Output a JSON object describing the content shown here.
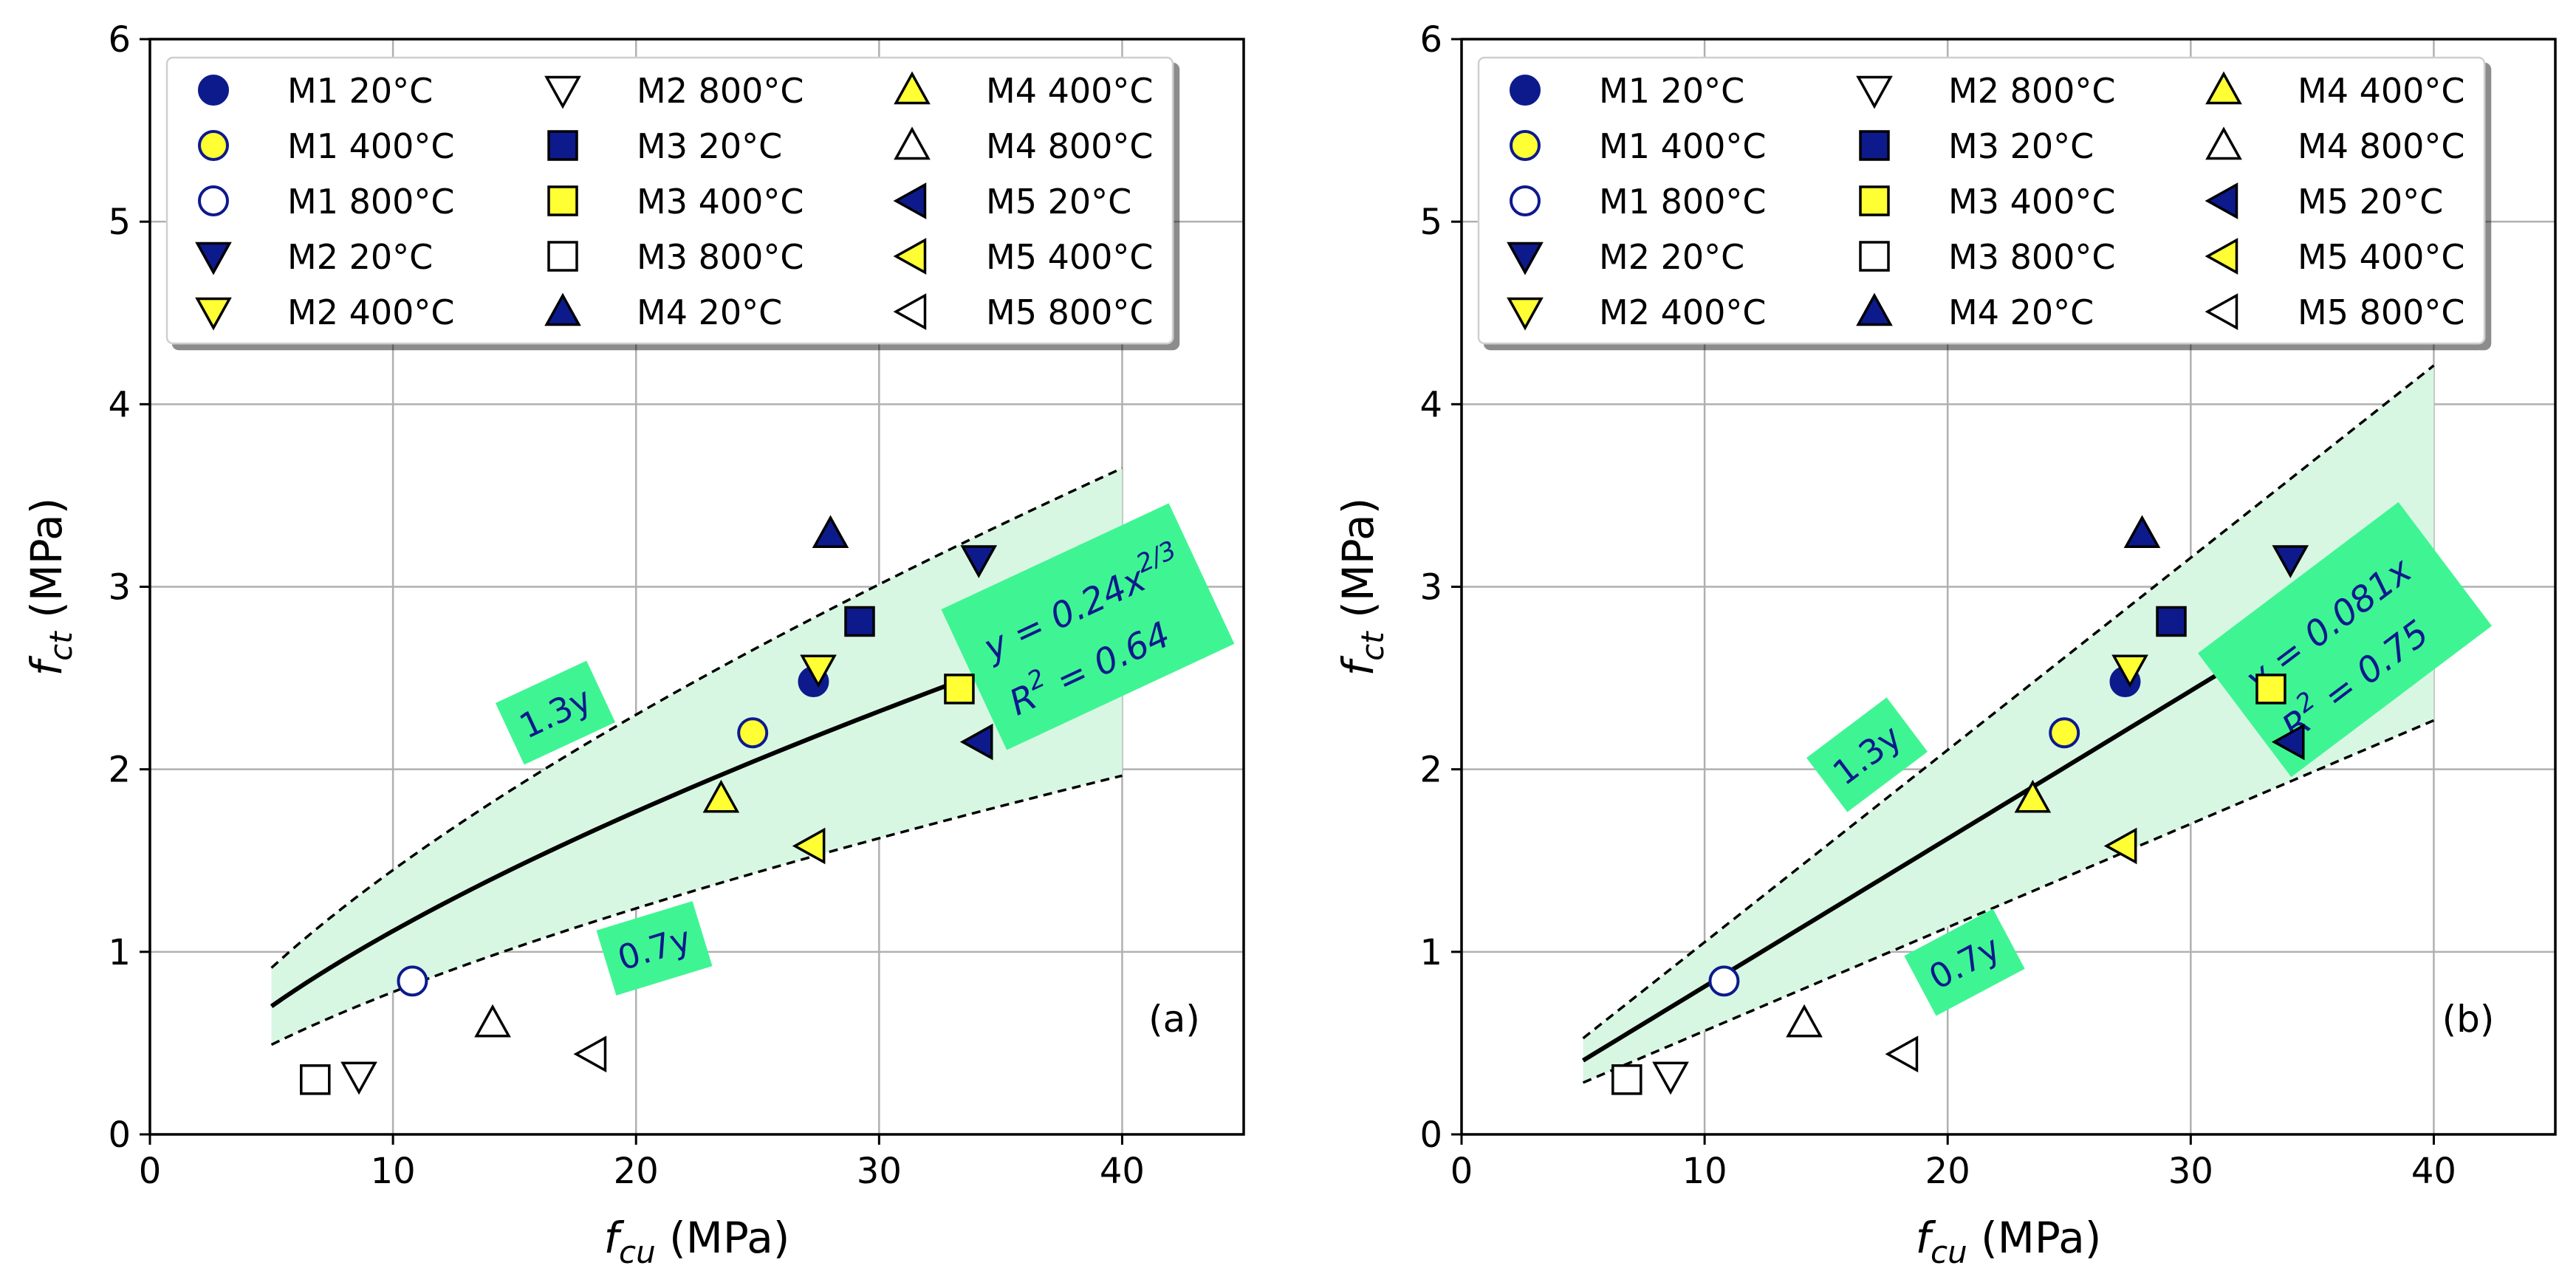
{
  "chart_data": [
    {
      "type": "scatter",
      "panel_label": "(a)",
      "xlabel": {
        "main": "f",
        "sub": "cu",
        "unit": "(MPa)"
      },
      "ylabel": {
        "main": "f",
        "sub": "ct",
        "unit": "(MPa)"
      },
      "xlim": [
        0,
        45
      ],
      "ylim": [
        0,
        6
      ],
      "xticks": [
        0,
        10,
        20,
        30,
        40
      ],
      "yticks": [
        0,
        1,
        2,
        3,
        4,
        5,
        6
      ],
      "grid": true,
      "legend_position": "top",
      "fit": {
        "kind": "power",
        "coef": 0.24,
        "exponent": 0.6667,
        "x_range": [
          5,
          34.5
        ],
        "band_x_range": [
          5,
          40
        ],
        "upper_factor": 1.3,
        "lower_factor": 0.7,
        "equation_main": "y = 0.24x",
        "equation_exp": "2/3",
        "r2_text": "R",
        "r2_exp": "2",
        "r2_value": " = 0.64",
        "upper_label": "1.3y",
        "lower_label": "0.7y"
      },
      "series": [
        {
          "name": "M1 20°C",
          "marker": "circle",
          "fill": "#0d1a8c",
          "x": [
            27.3
          ],
          "y": [
            2.48
          ]
        },
        {
          "name": "M1 400°C",
          "marker": "circle",
          "fill": "#ffff33",
          "x": [
            24.8
          ],
          "y": [
            2.2
          ]
        },
        {
          "name": "M1 800°C",
          "marker": "circle",
          "fill": "#ffffff",
          "x": [
            10.8
          ],
          "y": [
            0.84
          ]
        },
        {
          "name": "M2 20°C",
          "marker": "triangle-down",
          "fill": "#0d1a8c",
          "x": [
            34.1
          ],
          "y": [
            3.15
          ]
        },
        {
          "name": "M2 400°C",
          "marker": "triangle-down",
          "fill": "#ffff33",
          "x": [
            27.5
          ],
          "y": [
            2.55
          ]
        },
        {
          "name": "M2 800°C",
          "marker": "triangle-down",
          "fill": "#ffffff",
          "x": [
            8.6
          ],
          "y": [
            0.32
          ]
        },
        {
          "name": "M3 20°C",
          "marker": "square",
          "fill": "#0d1a8c",
          "x": [
            29.2
          ],
          "y": [
            2.81
          ]
        },
        {
          "name": "M3 400°C",
          "marker": "square",
          "fill": "#ffff33",
          "x": [
            33.3
          ],
          "y": [
            2.44
          ]
        },
        {
          "name": "M3 800°C",
          "marker": "square",
          "fill": "#ffffff",
          "x": [
            6.8
          ],
          "y": [
            0.3
          ]
        },
        {
          "name": "M4 20°C",
          "marker": "triangle-up",
          "fill": "#0d1a8c",
          "x": [
            28.0
          ],
          "y": [
            3.29
          ]
        },
        {
          "name": "M4 400°C",
          "marker": "triangle-up",
          "fill": "#ffff33",
          "x": [
            23.5
          ],
          "y": [
            1.84
          ]
        },
        {
          "name": "M4 800°C",
          "marker": "triangle-up",
          "fill": "#ffffff",
          "x": [
            14.1
          ],
          "y": [
            0.61
          ]
        },
        {
          "name": "M5 20°C",
          "marker": "triangle-left",
          "fill": "#0d1a8c",
          "x": [
            34.1
          ],
          "y": [
            2.15
          ]
        },
        {
          "name": "M5 400°C",
          "marker": "triangle-left",
          "fill": "#ffff33",
          "x": [
            27.2
          ],
          "y": [
            1.58
          ]
        },
        {
          "name": "M5 800°C",
          "marker": "triangle-left",
          "fill": "#ffffff",
          "x": [
            18.2
          ],
          "y": [
            0.44
          ]
        }
      ]
    },
    {
      "type": "scatter",
      "panel_label": "(b)",
      "xlabel": {
        "main": "f",
        "sub": "cu",
        "unit": "(MPa)"
      },
      "ylabel": {
        "main": "f",
        "sub": "ct",
        "unit": "(MPa)"
      },
      "xlim": [
        0,
        45
      ],
      "ylim": [
        0,
        6
      ],
      "xticks": [
        0,
        10,
        20,
        30,
        40
      ],
      "yticks": [
        0,
        1,
        2,
        3,
        4,
        5,
        6
      ],
      "grid": true,
      "legend_position": "top",
      "fit": {
        "kind": "linear",
        "coef": 0.081,
        "exponent": 1,
        "x_range": [
          5,
          33.6
        ],
        "band_x_range": [
          5,
          40
        ],
        "upper_factor": 1.3,
        "lower_factor": 0.7,
        "equation_main": "y = 0.081x",
        "equation_exp": "",
        "r2_text": "R",
        "r2_exp": "2",
        "r2_value": " = 0.75",
        "upper_label": "1.3y",
        "lower_label": "0.7y"
      },
      "series": [
        {
          "name": "M1 20°C",
          "marker": "circle",
          "fill": "#0d1a8c",
          "x": [
            27.3
          ],
          "y": [
            2.48
          ]
        },
        {
          "name": "M1 400°C",
          "marker": "circle",
          "fill": "#ffff33",
          "x": [
            24.8
          ],
          "y": [
            2.2
          ]
        },
        {
          "name": "M1 800°C",
          "marker": "circle",
          "fill": "#ffffff",
          "x": [
            10.8
          ],
          "y": [
            0.84
          ]
        },
        {
          "name": "M2 20°C",
          "marker": "triangle-down",
          "fill": "#0d1a8c",
          "x": [
            34.1
          ],
          "y": [
            3.15
          ]
        },
        {
          "name": "M2 400°C",
          "marker": "triangle-down",
          "fill": "#ffff33",
          "x": [
            27.5
          ],
          "y": [
            2.55
          ]
        },
        {
          "name": "M2 800°C",
          "marker": "triangle-down",
          "fill": "#ffffff",
          "x": [
            8.6
          ],
          "y": [
            0.32
          ]
        },
        {
          "name": "M3 20°C",
          "marker": "square",
          "fill": "#0d1a8c",
          "x": [
            29.2
          ],
          "y": [
            2.81
          ]
        },
        {
          "name": "M3 400°C",
          "marker": "square",
          "fill": "#ffff33",
          "x": [
            33.3
          ],
          "y": [
            2.44
          ]
        },
        {
          "name": "M3 800°C",
          "marker": "square",
          "fill": "#ffffff",
          "x": [
            6.8
          ],
          "y": [
            0.3
          ]
        },
        {
          "name": "M4 20°C",
          "marker": "triangle-up",
          "fill": "#0d1a8c",
          "x": [
            28.0
          ],
          "y": [
            3.29
          ]
        },
        {
          "name": "M4 400°C",
          "marker": "triangle-up",
          "fill": "#ffff33",
          "x": [
            23.5
          ],
          "y": [
            1.84
          ]
        },
        {
          "name": "M4 800°C",
          "marker": "triangle-up",
          "fill": "#ffffff",
          "x": [
            14.1
          ],
          "y": [
            0.61
          ]
        },
        {
          "name": "M5 20°C",
          "marker": "triangle-left",
          "fill": "#0d1a8c",
          "x": [
            34.1
          ],
          "y": [
            2.15
          ]
        },
        {
          "name": "M5 400°C",
          "marker": "triangle-left",
          "fill": "#ffff33",
          "x": [
            27.2
          ],
          "y": [
            1.58
          ]
        },
        {
          "name": "M5 800°C",
          "marker": "triangle-left",
          "fill": "#ffffff",
          "x": [
            18.2
          ],
          "y": [
            0.44
          ]
        }
      ]
    }
  ],
  "colors": {
    "band_fill": "#d8f7e3",
    "label_box": "#3ff593",
    "label_text": "#0d1a8c",
    "marker_edge_dark": "#000000",
    "marker_edge_circle_open": "#0d1a8c",
    "grid": "#b0b0b0",
    "axis": "#000000"
  }
}
